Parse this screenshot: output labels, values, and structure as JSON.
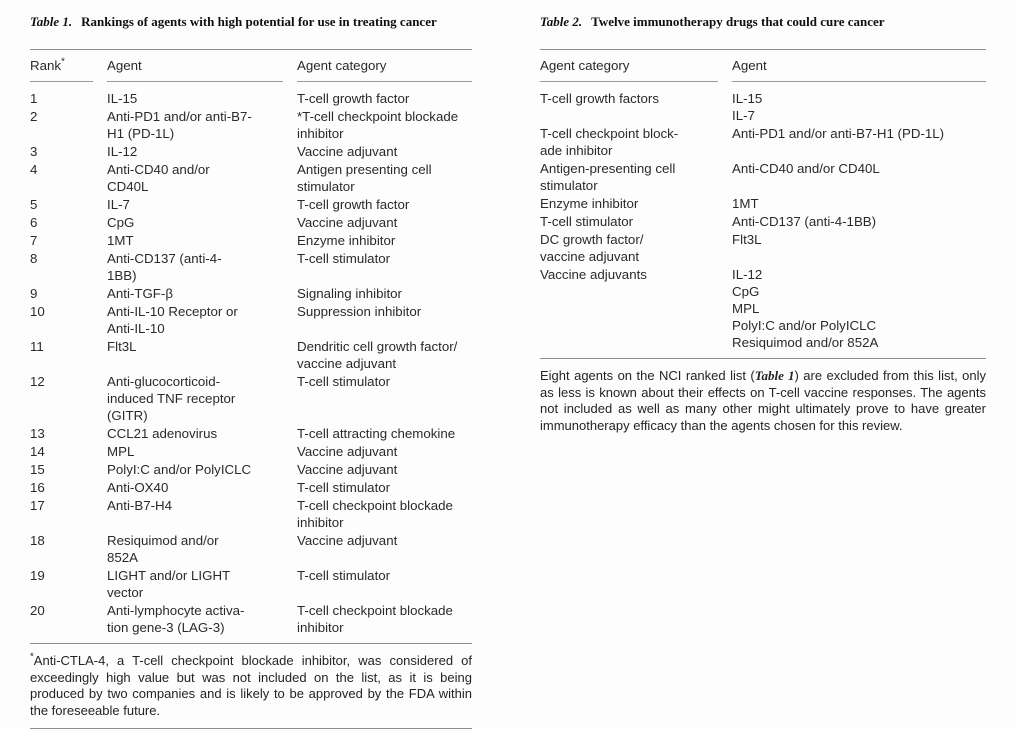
{
  "colors": {
    "rule": "#8e8e8e",
    "text": "#242424",
    "background": "#fdfdfd"
  },
  "table1": {
    "caption_label": "Table 1.",
    "caption_text": "Rankings of agents with high potential for use in treating cancer",
    "headers": {
      "rank": "Rank",
      "rank_sup": "*",
      "agent": "Agent",
      "category": "Agent category"
    },
    "rows": [
      {
        "rank": "1",
        "agent": "IL-15",
        "category": "T-cell growth factor"
      },
      {
        "rank": "2",
        "agent": "Anti-PD1 and/or anti-B7-\nH1 (PD-1L)",
        "category": "*T-cell checkpoint blockade\ninhibitor"
      },
      {
        "rank": "3",
        "agent": "IL-12",
        "category": "Vaccine adjuvant"
      },
      {
        "rank": "4",
        "agent": "Anti-CD40 and/or\nCD40L",
        "category": "Antigen presenting cell\nstimulator"
      },
      {
        "rank": "5",
        "agent": "IL-7",
        "category": "T-cell growth factor"
      },
      {
        "rank": "6",
        "agent": "CpG",
        "category": "Vaccine adjuvant"
      },
      {
        "rank": "7",
        "agent": "1MT",
        "category": "Enzyme inhibitor"
      },
      {
        "rank": "8",
        "agent": "Anti-CD137 (anti-4-\n1BB)",
        "category": "T-cell stimulator"
      },
      {
        "rank": "9",
        "agent": "Anti-TGF-β",
        "category": "Signaling inhibitor"
      },
      {
        "rank": "10",
        "agent": "Anti-IL-10 Receptor or\nAnti-IL-10",
        "category": "Suppression inhibitor"
      },
      {
        "rank": "11",
        "agent": "Flt3L",
        "category": "Dendritic cell growth factor/\nvaccine adjuvant"
      },
      {
        "rank": "12",
        "agent": "Anti-glucocorticoid-\ninduced TNF receptor\n(GITR)",
        "category": "T-cell stimulator"
      },
      {
        "rank": "13",
        "agent": "CCL21 adenovirus",
        "category": "T-cell attracting chemokine"
      },
      {
        "rank": "14",
        "agent": "MPL",
        "category": "Vaccine adjuvant"
      },
      {
        "rank": "15",
        "agent": "PolyI:C and/or PolyICLC",
        "category": "Vaccine adjuvant"
      },
      {
        "rank": "16",
        "agent": "Anti-OX40",
        "category": "T-cell stimulator"
      },
      {
        "rank": "17",
        "agent": "Anti-B7-H4",
        "category": "T-cell checkpoint blockade\ninhibitor"
      },
      {
        "rank": "18",
        "agent": "Resiquimod and/or 852A",
        "category": "Vaccine adjuvant"
      },
      {
        "rank": "19",
        "agent": "LIGHT and/or LIGHT\nvector",
        "category": "T-cell stimulator"
      },
      {
        "rank": "20",
        "agent": "Anti-lymphocyte activa-\ntion gene-3 (LAG-3)",
        "category": "T-cell checkpoint blockade\ninhibitor"
      }
    ],
    "footnote_marker": "*",
    "footnote": "Anti-CTLA-4, a T-cell checkpoint blockade inhibitor, was considered of exceedingly high value but was not included on the list, as it is being produced by two companies and is likely to be approved by the FDA within the foreseeable future."
  },
  "table2": {
    "caption_label": "Table 2.",
    "caption_text": "Twelve immunotherapy drugs that could cure cancer",
    "headers": {
      "category": "Agent category",
      "agent": "Agent"
    },
    "groups": [
      {
        "category": "T-cell growth factors",
        "agents": [
          "IL-15",
          "IL-7"
        ]
      },
      {
        "category": "T-cell checkpoint block-\nade inhibitor",
        "agents": [
          "Anti-PD1 and/or anti-B7-H1 (PD-1L)"
        ]
      },
      {
        "category": "Antigen-presenting cell\nstimulator",
        "agents": [
          "Anti-CD40 and/or CD40L"
        ]
      },
      {
        "category": "Enzyme inhibitor",
        "agents": [
          "1MT"
        ]
      },
      {
        "category": "T-cell stimulator",
        "agents": [
          "Anti-CD137 (anti-4-1BB)"
        ]
      },
      {
        "category": "DC growth factor/\nvaccine adjuvant",
        "agents": [
          "Flt3L"
        ]
      },
      {
        "category": "Vaccine adjuvants",
        "agents": [
          "IL-12",
          "CpG",
          "MPL",
          "PolyI:C and/or PolyICLC",
          "Resiquimod and/or 852A"
        ]
      }
    ],
    "footnote_pre": "Eight agents on the NCI ranked list (",
    "footnote_ref": "Table 1",
    "footnote_post": ") are excluded from this list, only as less is known about their effects on T-cell vaccine responses. The agents not included as well as many other might ultimately prove to have greater immunotherapy efficacy than the agents chosen for this review."
  }
}
